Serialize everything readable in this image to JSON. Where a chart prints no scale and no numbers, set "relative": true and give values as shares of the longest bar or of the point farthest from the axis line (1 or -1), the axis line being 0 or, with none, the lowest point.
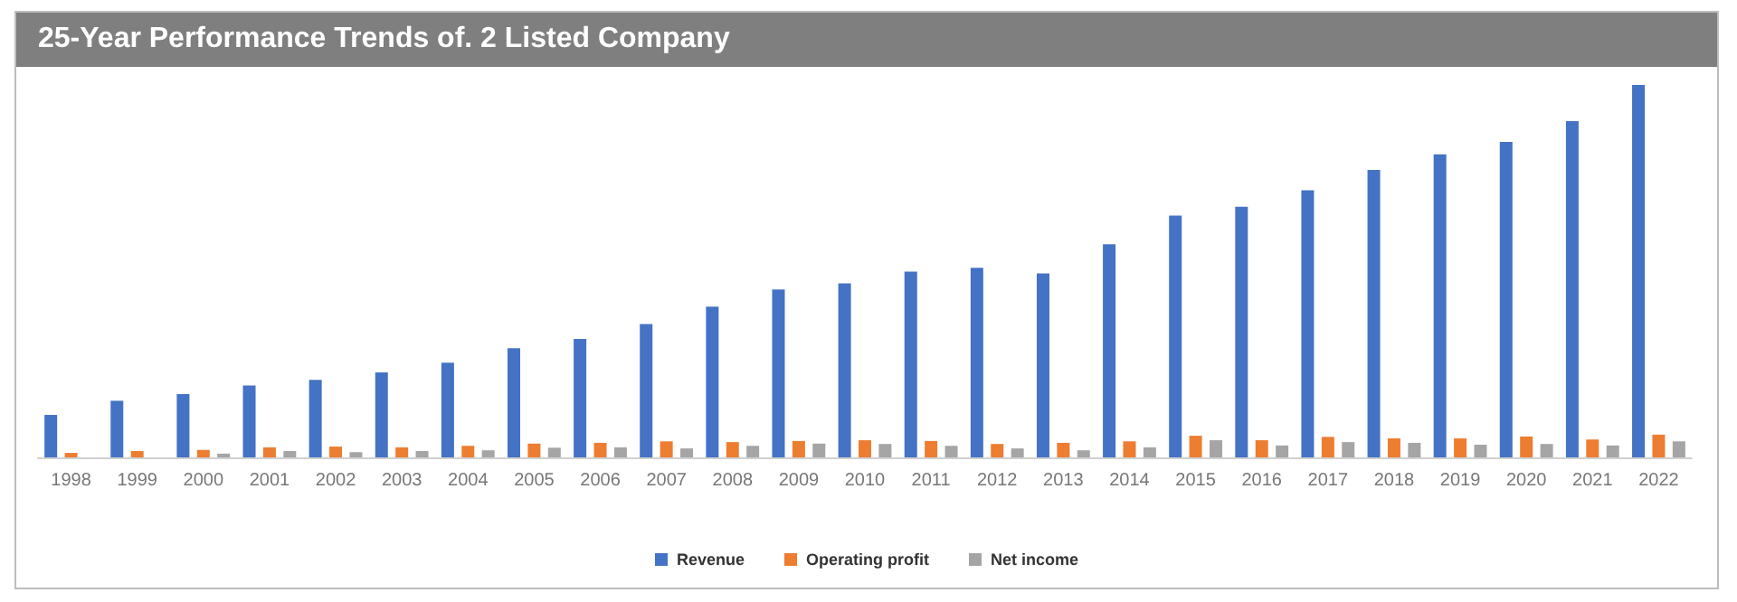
{
  "chart_data": {
    "type": "bar",
    "title": "25-Year Performance Trends of. 2 Listed Company",
    "relative": true,
    "legend": "bottom",
    "categories": [
      "1998",
      "1999",
      "2000",
      "2001",
      "2002",
      "2003",
      "2004",
      "2005",
      "2006",
      "2007",
      "2008",
      "2009",
      "2010",
      "2011",
      "2012",
      "2013",
      "2014",
      "2015",
      "2016",
      "2017",
      "2018",
      "2019",
      "2020",
      "2021",
      "2022"
    ],
    "series": [
      {
        "name": "Revenue",
        "color": "#4472c4",
        "values": [
          0.114,
          0.152,
          0.17,
          0.193,
          0.208,
          0.228,
          0.254,
          0.293,
          0.318,
          0.358,
          0.405,
          0.451,
          0.467,
          0.499,
          0.509,
          0.494,
          0.572,
          0.649,
          0.673,
          0.717,
          0.772,
          0.814,
          0.847,
          0.903,
          1
        ]
      },
      {
        "name": "Operating profit",
        "color": "#ed7d31",
        "values": [
          0.012,
          0.017,
          0.02,
          0.027,
          0.029,
          0.027,
          0.031,
          0.037,
          0.039,
          0.043,
          0.041,
          0.044,
          0.046,
          0.044,
          0.036,
          0.039,
          0.043,
          0.058,
          0.046,
          0.055,
          0.051,
          0.051,
          0.056,
          0.048,
          0.061
        ]
      },
      {
        "name": "Net income",
        "color": "#a5a5a5",
        "values": [
          null,
          null,
          0.01,
          0.017,
          0.014,
          0.017,
          0.019,
          0.026,
          0.027,
          0.024,
          0.031,
          0.037,
          0.036,
          0.031,
          0.024,
          0.019,
          0.027,
          0.046,
          0.032,
          0.041,
          0.039,
          0.034,
          0.036,
          0.032,
          0.043
        ]
      }
    ]
  }
}
